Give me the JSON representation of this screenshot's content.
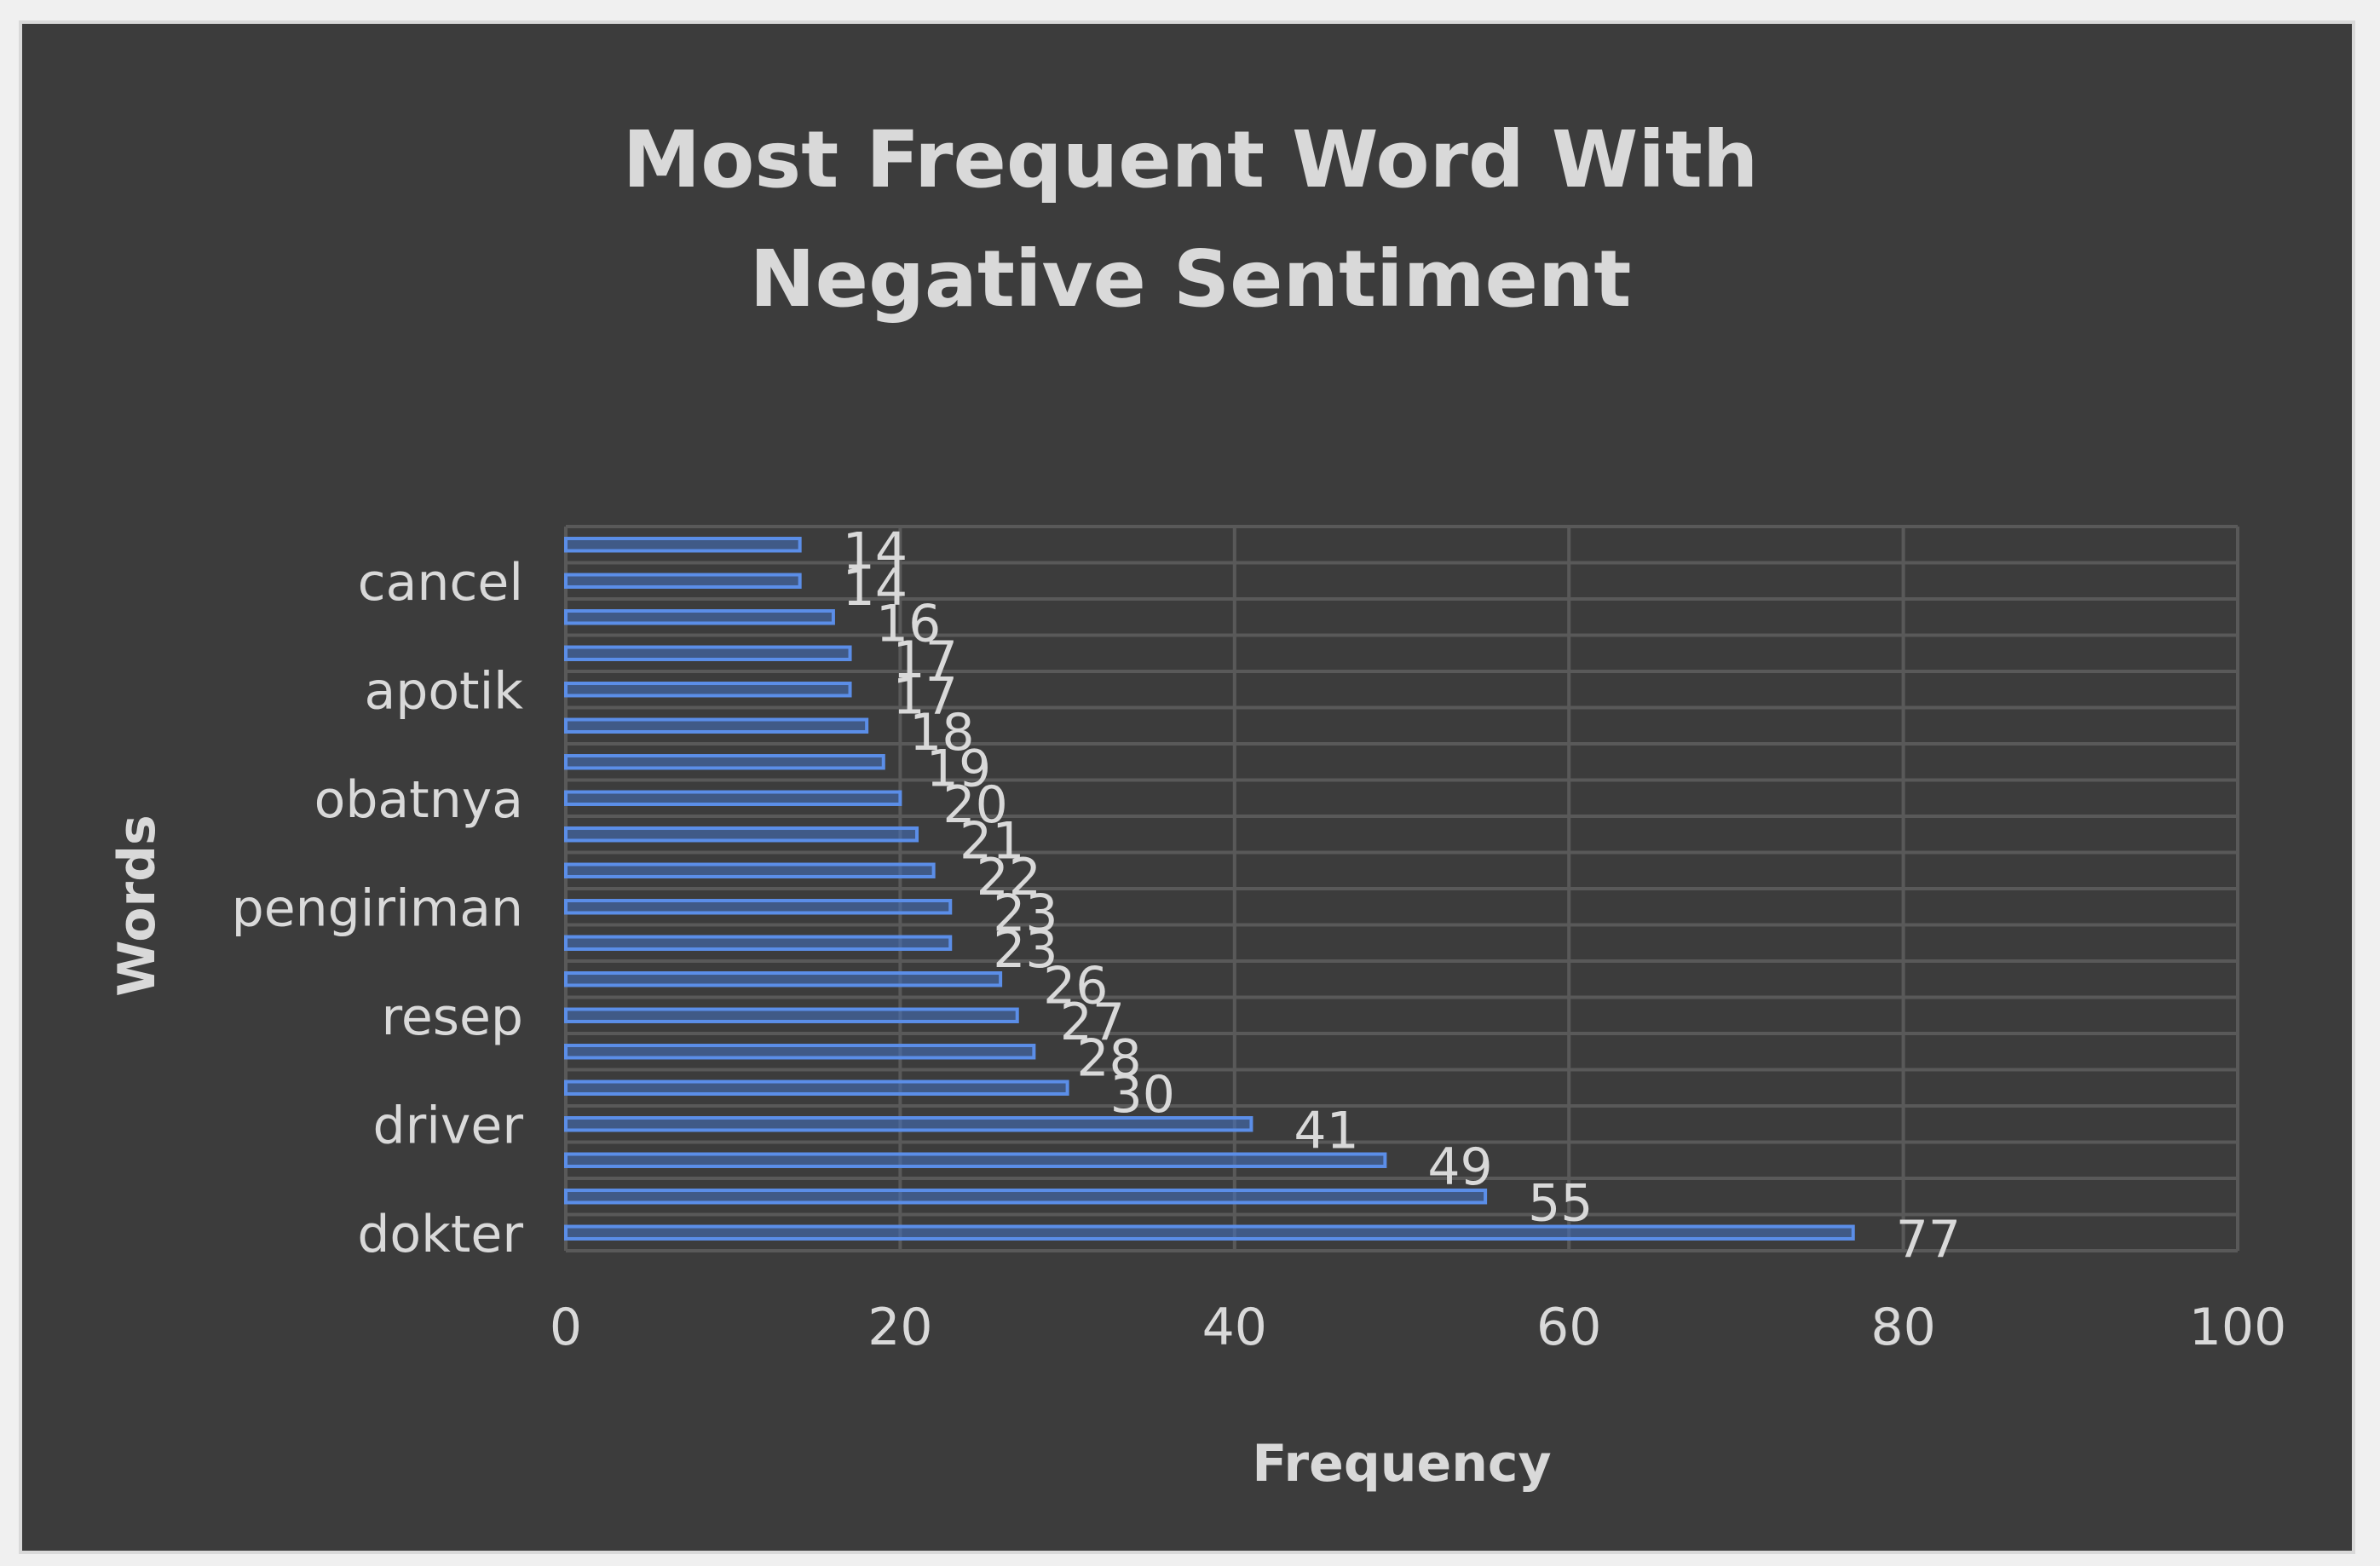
{
  "chart_data": {
    "type": "bar",
    "orientation": "horizontal",
    "title": "Most Frequent Word With Negative Sentiment",
    "xlabel": "Frequency",
    "ylabel": "Words",
    "xlim": [
      0,
      100
    ],
    "x_ticks": [
      0,
      20,
      40,
      60,
      80,
      100
    ],
    "grid": true,
    "legend": "none",
    "bar_color": "#4472c4",
    "bar_edge_color": "#5b8ee8",
    "background_color": "#3c3c3c",
    "text_color": "#d9d9d9",
    "grid_color": "#595959",
    "categories_bottom_to_top": [
      "dokter",
      "",
      "",
      "driver",
      "",
      "",
      "resep",
      "",
      "",
      "pengiriman",
      "",
      "",
      "obatnya",
      "",
      "",
      "apotik",
      "",
      "",
      "cancel",
      ""
    ],
    "values_bottom_to_top": [
      77,
      55,
      49,
      41,
      30,
      28,
      27,
      26,
      23,
      23,
      22,
      21,
      20,
      19,
      18,
      17,
      17,
      16,
      14,
      14
    ],
    "visible_category_labels": [
      "dokter",
      "driver",
      "resep",
      "pengiriman",
      "obatnya",
      "apotik",
      "cancel"
    ]
  }
}
